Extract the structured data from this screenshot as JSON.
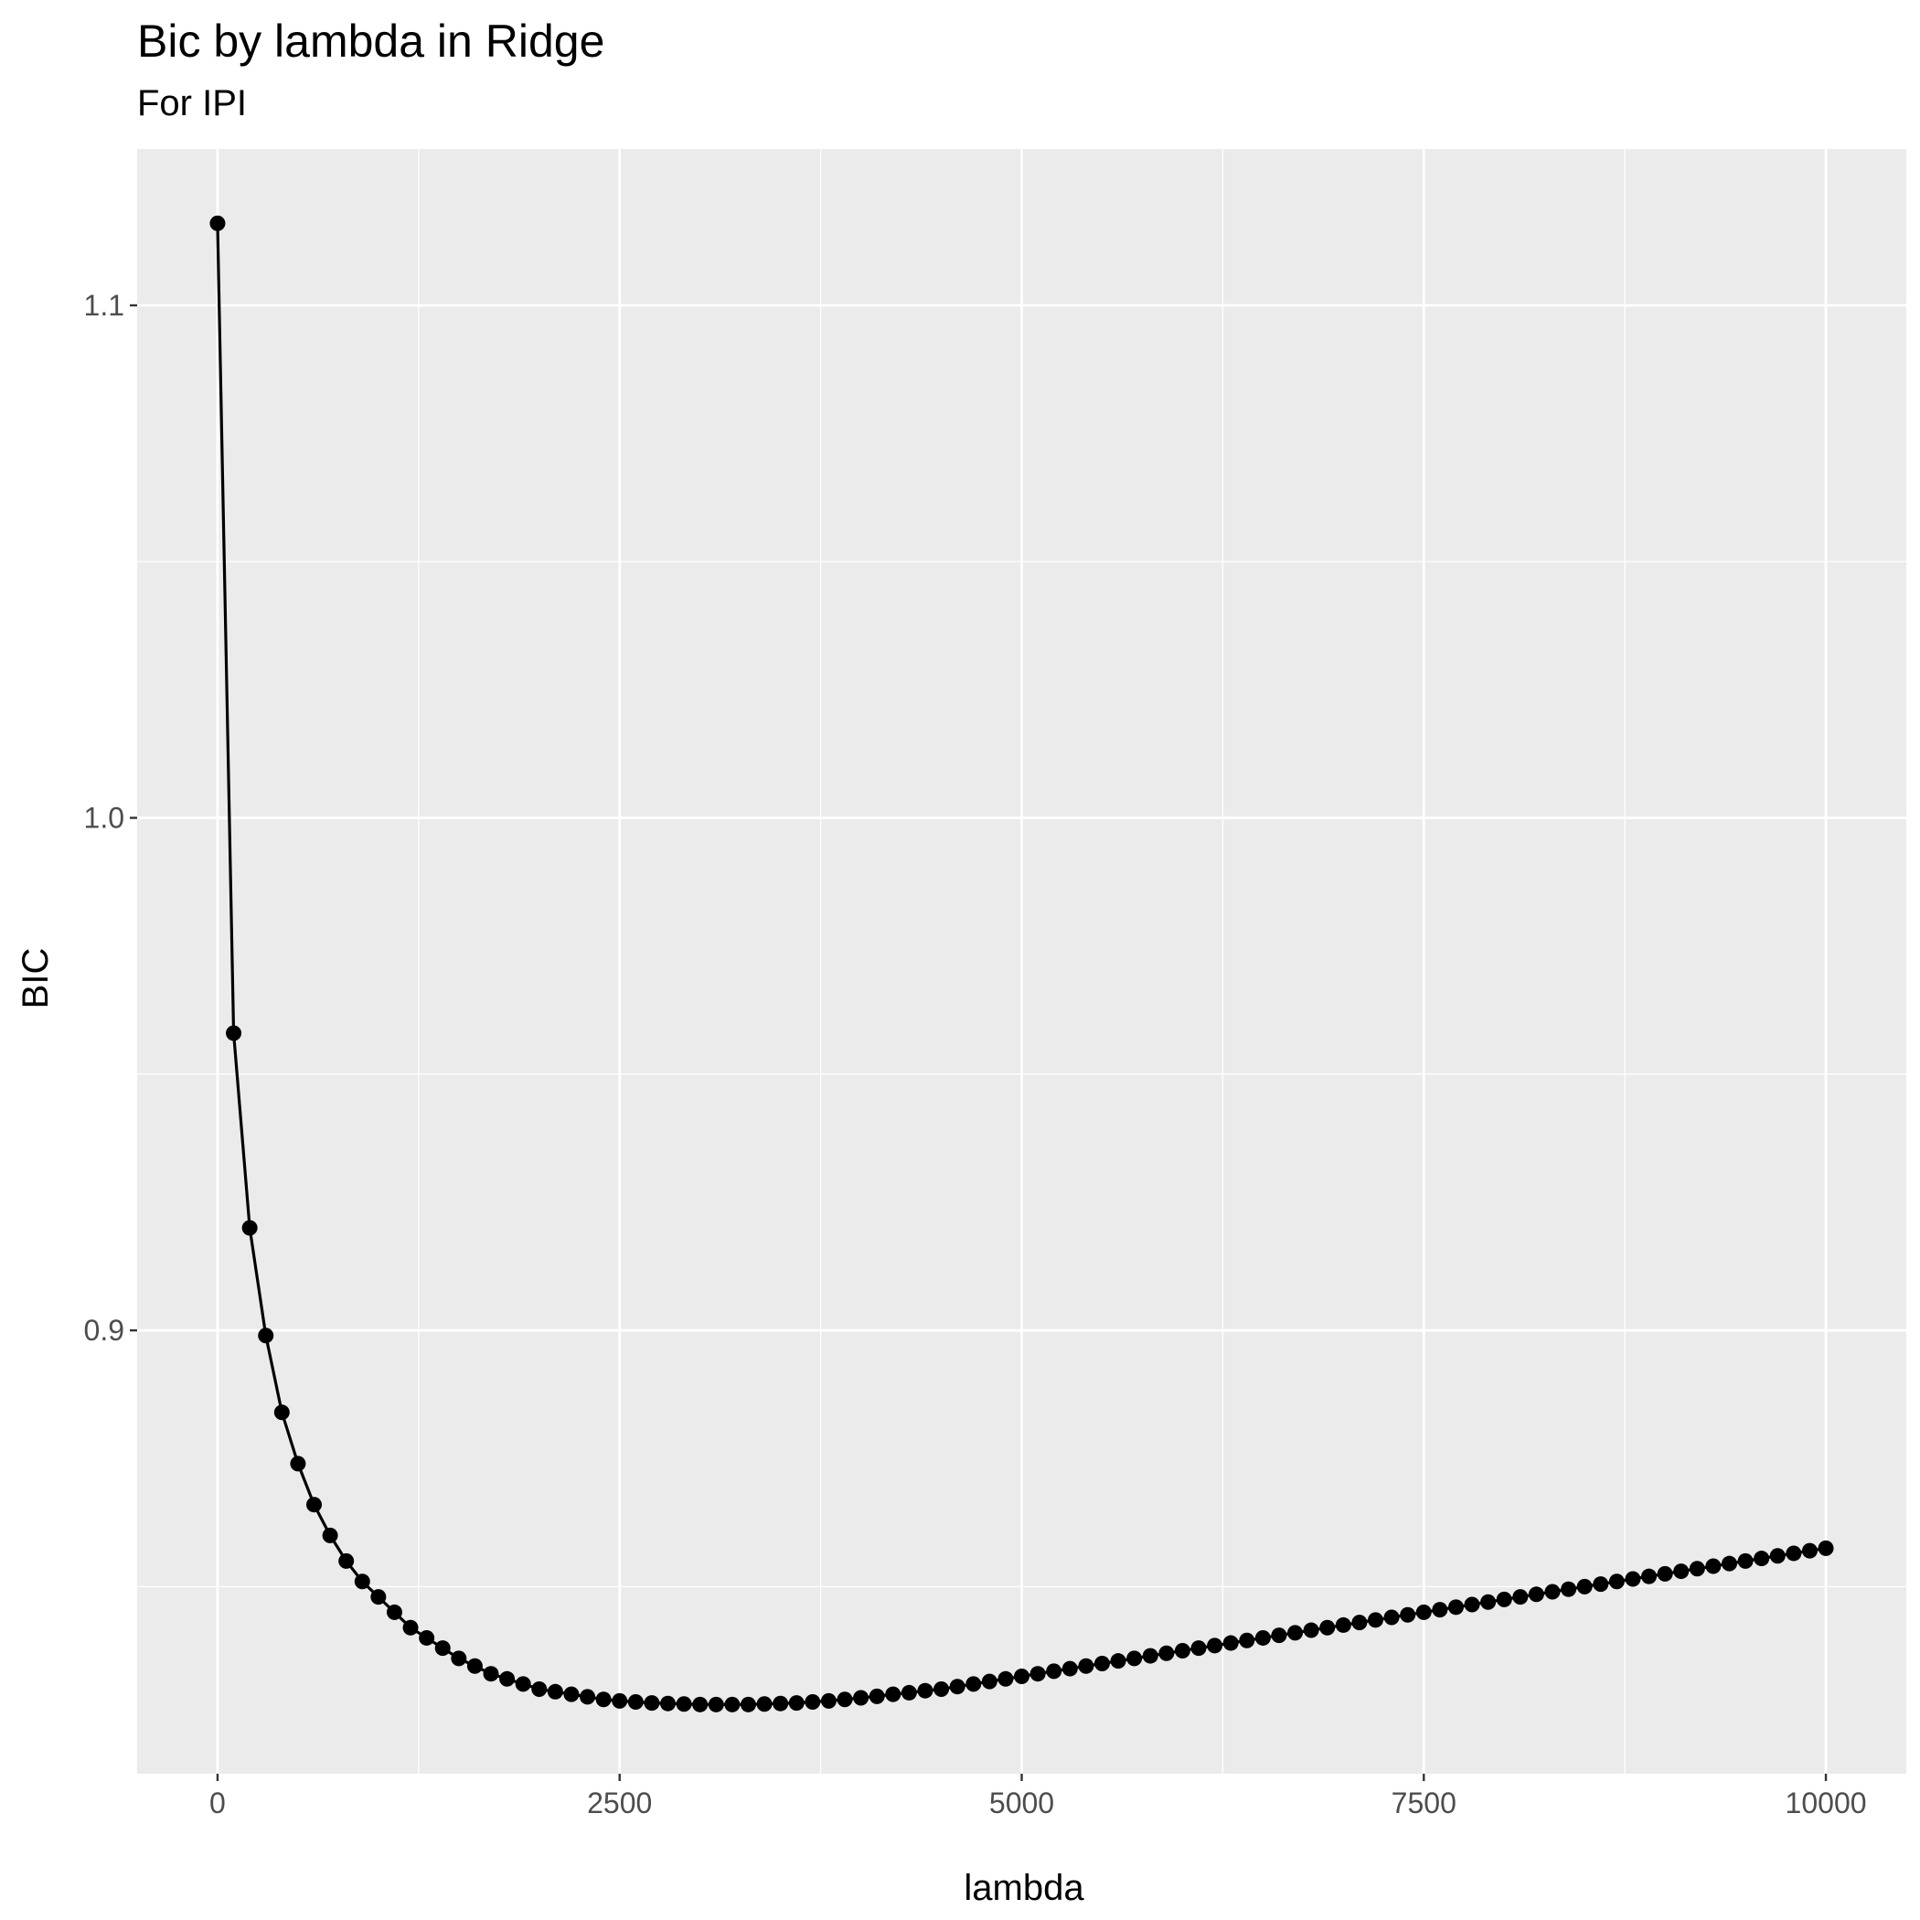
{
  "chart_data": {
    "type": "line",
    "title": "Bic by lambda in Ridge",
    "subtitle": "For IPI",
    "xlabel": "lambda",
    "ylabel": "BIC",
    "xlim": [
      -500,
      10500
    ],
    "ylim": [
      0.8135,
      1.1305
    ],
    "grid": true,
    "x_ticks": [
      0,
      2500,
      5000,
      7500,
      10000
    ],
    "x_tick_labels": [
      "0",
      "2500",
      "5000",
      "7500",
      "10000"
    ],
    "y_ticks": [
      0.9,
      1.0,
      1.1
    ],
    "y_tick_labels": [
      "0.9",
      "1.0",
      "1.1"
    ],
    "series": [
      {
        "x": [
          0,
          100,
          200,
          300,
          400,
          500,
          600,
          700,
          800,
          900,
          1000,
          1100,
          1200,
          1300,
          1400,
          1500,
          1600,
          1700,
          1800,
          1900,
          2000,
          2100,
          2200,
          2300,
          2400,
          2500,
          2600,
          2700,
          2800,
          2900,
          3000,
          3100,
          3200,
          3300,
          3400,
          3500,
          3600,
          3700,
          3800,
          3900,
          4000,
          4100,
          4200,
          4300,
          4400,
          4500,
          4600,
          4700,
          4800,
          4900,
          5000,
          5100,
          5200,
          5300,
          5400,
          5500,
          5600,
          5700,
          5800,
          5900,
          6000,
          6100,
          6200,
          6300,
          6400,
          6500,
          6600,
          6700,
          6800,
          6900,
          7000,
          7100,
          7200,
          7300,
          7400,
          7500,
          7600,
          7700,
          7800,
          7900,
          8000,
          8100,
          8200,
          8300,
          8400,
          8500,
          8600,
          8700,
          8800,
          8900,
          9000,
          9100,
          9200,
          9300,
          9400,
          9500,
          9600,
          9700,
          9800,
          9900,
          10000
        ],
        "values": [
          1.116,
          0.958,
          0.92,
          0.899,
          0.884,
          0.874,
          0.866,
          0.86,
          0.855,
          0.851,
          0.848,
          0.845,
          0.842,
          0.84,
          0.838,
          0.836,
          0.8345,
          0.833,
          0.832,
          0.831,
          0.83,
          0.8295,
          0.829,
          0.8285,
          0.828,
          0.8277,
          0.8275,
          0.8273,
          0.8272,
          0.8271,
          0.827,
          0.827,
          0.827,
          0.827,
          0.8271,
          0.8272,
          0.8273,
          0.8275,
          0.8277,
          0.828,
          0.8283,
          0.8286,
          0.829,
          0.8293,
          0.8297,
          0.83,
          0.8305,
          0.831,
          0.8315,
          0.832,
          0.8325,
          0.833,
          0.8335,
          0.834,
          0.8345,
          0.835,
          0.8355,
          0.836,
          0.8365,
          0.837,
          0.8375,
          0.838,
          0.8385,
          0.839,
          0.8395,
          0.84,
          0.8405,
          0.841,
          0.8415,
          0.842,
          0.8425,
          0.843,
          0.8435,
          0.844,
          0.8445,
          0.845,
          0.8455,
          0.846,
          0.8465,
          0.847,
          0.8475,
          0.848,
          0.8485,
          0.849,
          0.8495,
          0.85,
          0.8505,
          0.851,
          0.8515,
          0.852,
          0.8525,
          0.853,
          0.8535,
          0.854,
          0.8545,
          0.855,
          0.8555,
          0.856,
          0.8565,
          0.857,
          0.8575
        ]
      }
    ]
  }
}
